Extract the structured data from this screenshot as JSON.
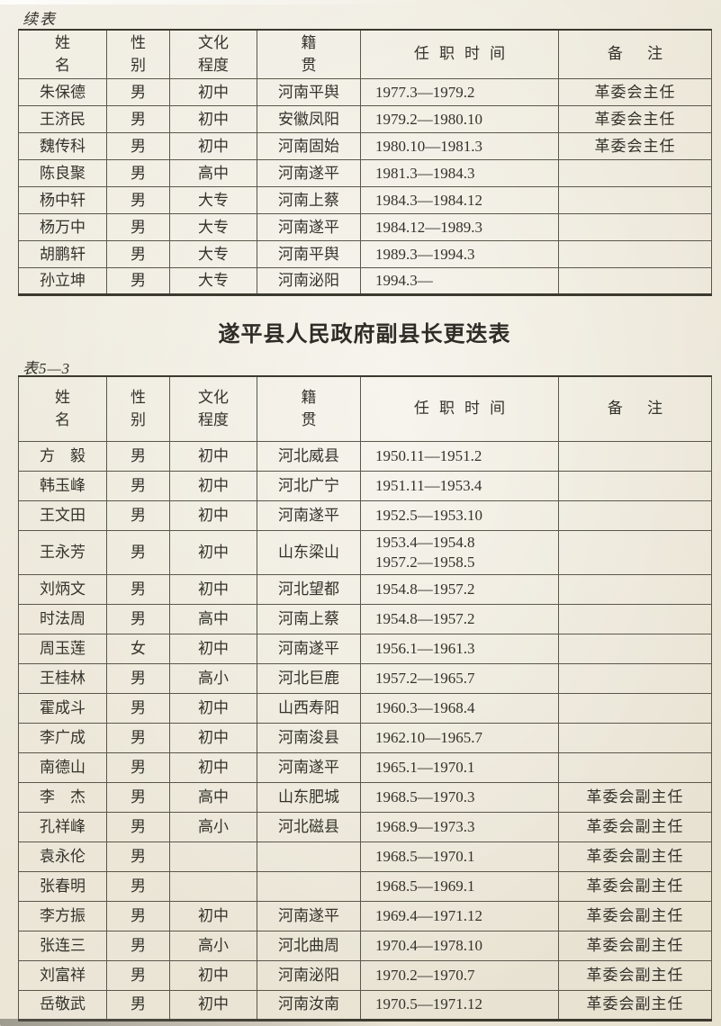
{
  "page": {
    "continued_label": "续表",
    "section_title": "遂平县人民政府副县长更迭表",
    "table_number_label": "表5—3"
  },
  "tables": [
    {
      "id": "continued-table",
      "headers": [
        "姓\n名",
        "性\n别",
        "文化\n程度",
        "籍\n贯",
        "任职时间",
        "备注"
      ],
      "rows": [
        [
          "朱保德",
          "男",
          "初中",
          "河南平舆",
          "1977.3—1979.2",
          "革委会主任"
        ],
        [
          "王济民",
          "男",
          "初中",
          "安徽凤阳",
          "1979.2—1980.10",
          "革委会主任"
        ],
        [
          "魏传科",
          "男",
          "初中",
          "河南固始",
          "1980.10—1981.3",
          "革委会主任"
        ],
        [
          "陈良聚",
          "男",
          "高中",
          "河南遂平",
          "1981.3—1984.3",
          ""
        ],
        [
          "杨中轩",
          "男",
          "大专",
          "河南上蔡",
          "1984.3—1984.12",
          ""
        ],
        [
          "杨万中",
          "男",
          "大专",
          "河南遂平",
          "1984.12—1989.3",
          ""
        ],
        [
          "胡鹏轩",
          "男",
          "大专",
          "河南平舆",
          "1989.3—1994.3",
          ""
        ],
        [
          "孙立坤",
          "男",
          "大专",
          "河南泌阳",
          "1994.3—",
          ""
        ]
      ]
    },
    {
      "id": "deputy-magistrate-table",
      "headers": [
        "姓\n名",
        "性\n别",
        "文化\n程度",
        "籍\n贯",
        "任职时间",
        "备注"
      ],
      "rows": [
        [
          "方　毅",
          "男",
          "初中",
          "河北威县",
          "1950.11—1951.2",
          ""
        ],
        [
          "韩玉峰",
          "男",
          "初中",
          "河北广宁",
          "1951.11—1953.4",
          ""
        ],
        [
          "王文田",
          "男",
          "初中",
          "河南遂平",
          "1952.5—1953.10",
          ""
        ],
        [
          "王永芳",
          "男",
          "初中",
          "山东梁山",
          "1953.4—1954.8\n1957.2—1958.5",
          ""
        ],
        [
          "刘炳文",
          "男",
          "初中",
          "河北望都",
          "1954.8—1957.2",
          ""
        ],
        [
          "时法周",
          "男",
          "高中",
          "河南上蔡",
          "1954.8—1957.2",
          ""
        ],
        [
          "周玉莲",
          "女",
          "初中",
          "河南遂平",
          "1956.1—1961.3",
          ""
        ],
        [
          "王桂林",
          "男",
          "高小",
          "河北巨鹿",
          "1957.2—1965.7",
          ""
        ],
        [
          "霍成斗",
          "男",
          "初中",
          "山西寿阳",
          "1960.3—1968.4",
          ""
        ],
        [
          "李广成",
          "男",
          "初中",
          "河南浚县",
          "1962.10—1965.7",
          ""
        ],
        [
          "南德山",
          "男",
          "初中",
          "河南遂平",
          "1965.1—1970.1",
          ""
        ],
        [
          "李　杰",
          "男",
          "高中",
          "山东肥城",
          "1968.5—1970.3",
          "革委会副主任"
        ],
        [
          "孔祥峰",
          "男",
          "高小",
          "河北磁县",
          "1968.9—1973.3",
          "革委会副主任"
        ],
        [
          "袁永伦",
          "男",
          "",
          "",
          "1968.5—1970.1",
          "革委会副主任"
        ],
        [
          "张春明",
          "男",
          "",
          "",
          "1968.5—1969.1",
          "革委会副主任"
        ],
        [
          "李方振",
          "男",
          "初中",
          "河南遂平",
          "1969.4—1971.12",
          "革委会副主任"
        ],
        [
          "张连三",
          "男",
          "高小",
          "河北曲周",
          "1970.4—1978.10",
          "革委会副主任"
        ],
        [
          "刘富祥",
          "男",
          "初中",
          "河南泌阳",
          "1970.2—1970.7",
          "革委会副主任"
        ],
        [
          "岳敬武",
          "男",
          "初中",
          "河南汝南",
          "1970.5—1971.12",
          "革委会副主任"
        ]
      ]
    }
  ]
}
